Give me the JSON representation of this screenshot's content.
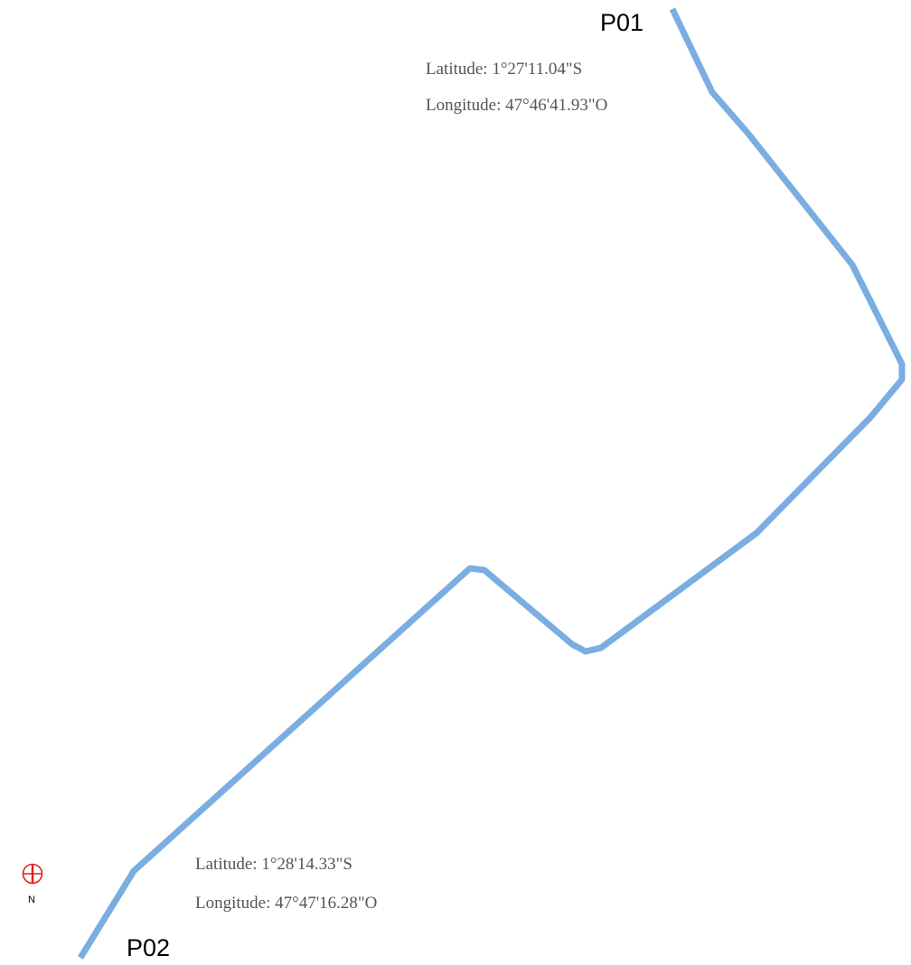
{
  "route": {
    "color": "#7aaee0"
  },
  "points": {
    "p01": {
      "label": "P01",
      "latitude": "Latitude: 1°27'11.04\"S",
      "longitude": "Longitude: 47°46'41.93\"O"
    },
    "p02": {
      "label": "P02",
      "latitude": "Latitude: 1°28'14.33\"S",
      "longitude": "Longitude: 47°47'16.28\"O"
    }
  },
  "north_arrow": {
    "label": "N",
    "color": "#e02020",
    "icon": "north-arrow-icon"
  }
}
